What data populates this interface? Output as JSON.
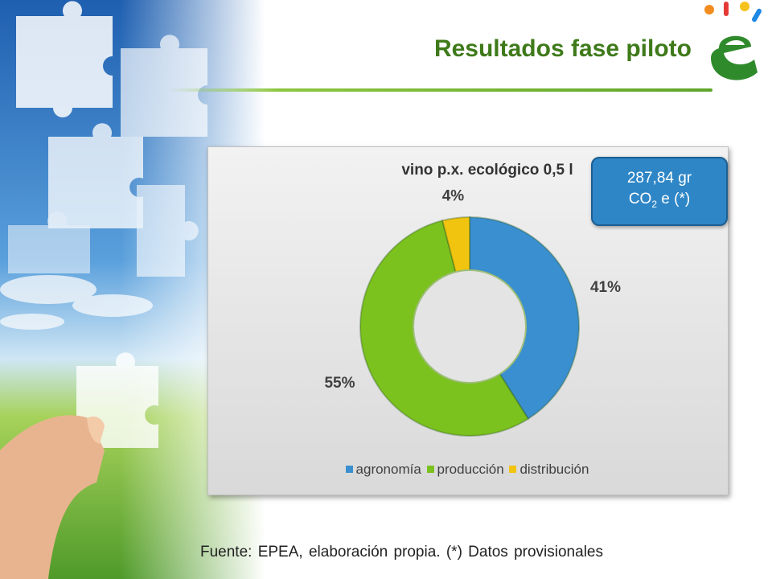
{
  "slide": {
    "title": "Resultados fase piloto",
    "source_note": "Fuente: EPEA, elaboración propia.  (*) Datos provisionales"
  },
  "callout": {
    "line1": "287,84 gr",
    "line2_prefix": "CO",
    "line2_sub": "2",
    "line2_suffix": " e (*)"
  },
  "colors": {
    "agronomia": "#3a8fd0",
    "produccion": "#7cc21f",
    "distribucion": "#f1c40f",
    "title": "#3f7a1a",
    "callout": "#2e86c6"
  },
  "chart_data": {
    "type": "pie",
    "variant": "doughnut",
    "title": "vino p.x. ecológico 0,5 l",
    "categories": [
      "agronomía",
      "producción",
      "distribución"
    ],
    "values": [
      41,
      55,
      4
    ],
    "data_labels": [
      "41%",
      "55%",
      "4%"
    ],
    "legend_position": "bottom"
  }
}
